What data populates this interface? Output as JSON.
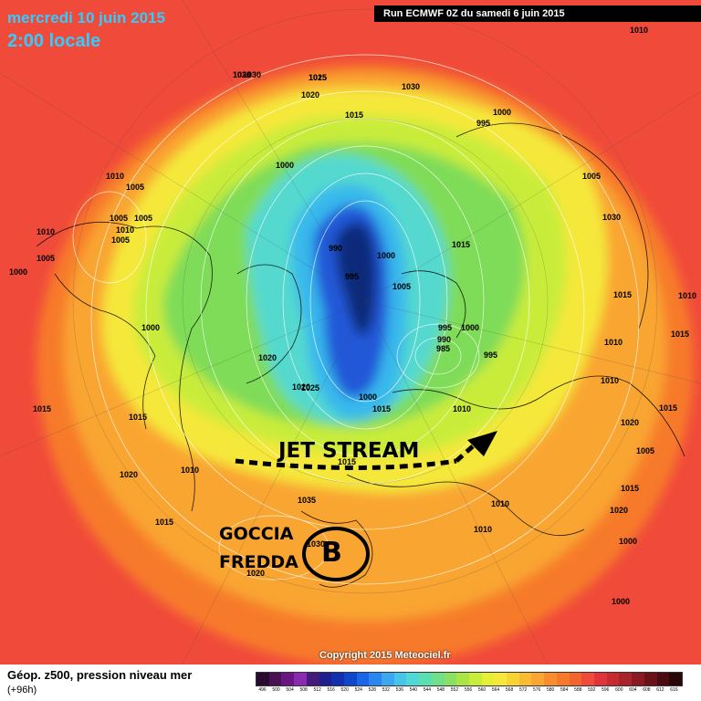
{
  "header": {
    "date": "mercredi 10 juin 2015",
    "time": "2:00 locale",
    "run": "Run ECMWF 0Z du samedi 6 juin 2015"
  },
  "footer": {
    "title": "Géop. z500, pression niveau mer",
    "subtitle": "(+96h)",
    "copyright": "Copyright 2015 Meteociel.fr"
  },
  "annotations": {
    "jet_stream": "JET STREAM",
    "cold_drop_line1": "GOCCIA",
    "cold_drop_line2": "FREDDA",
    "low_letter": "B"
  },
  "colors": {
    "background": "#f04a3a",
    "outer_orange": "#f77a2c",
    "orange": "#f9a531",
    "yellow": "#f5e83a",
    "light_green": "#c9ec3b",
    "green": "#7fdc58",
    "cyan": "#55d9cf",
    "light_blue": "#39b8ec",
    "blue": "#2259d8",
    "deep_blue": "#133aa2",
    "navy": "#0d2a7a"
  },
  "pressure_labels": [
    "1030",
    "1025",
    "1020",
    "1015",
    "1030",
    "1000",
    "995",
    "1010",
    "1000",
    "1005",
    "1005",
    "1010",
    "1010",
    "1005",
    "1010",
    "1005",
    "1000",
    "1005",
    "990",
    "995",
    "1000",
    "1005",
    "1015",
    "1030",
    "1030",
    "995",
    "1000",
    "990",
    "985",
    "995",
    "1010",
    "1010",
    "1015",
    "1015",
    "1020",
    "1015",
    "1020",
    "1005",
    "1000",
    "1025",
    "1020",
    "1000",
    "1015",
    "1020",
    "1035",
    "1030",
    "1020",
    "1015",
    "1010",
    "1010",
    "1020",
    "1005",
    "1000",
    "1015",
    "1000",
    "1015",
    "1010",
    "1010",
    "1015",
    "1010",
    "1015",
    "1020",
    "1015"
  ],
  "scale_colors": [
    "#2a0a30",
    "#4a0f55",
    "#6a1680",
    "#8a2ab0",
    "#451a7a",
    "#201f8f",
    "#122fae",
    "#0f47cc",
    "#1a66e8",
    "#2a86f0",
    "#3aa7ef",
    "#46c4ea",
    "#4fd8d5",
    "#5ae0b0",
    "#6fe08a",
    "#8ae063",
    "#a9e545",
    "#c9ec3b",
    "#e4ef36",
    "#f5e83a",
    "#f7d334",
    "#f9bb31",
    "#f9a531",
    "#f98c2e",
    "#f77a2c",
    "#f4652e",
    "#f04a3a",
    "#e0333a",
    "#c62b32",
    "#a8232a",
    "#8a1a22",
    "#6a121a",
    "#4a0c12",
    "#2a0608"
  ],
  "scale_labels": [
    "496",
    "500",
    "504",
    "508",
    "512",
    "516",
    "520",
    "524",
    "528",
    "532",
    "536",
    "540",
    "544",
    "548",
    "552",
    "556",
    "560",
    "564",
    "568",
    "572",
    "576",
    "580",
    "584",
    "588",
    "592",
    "596",
    "600",
    "604",
    "608",
    "612",
    "616"
  ]
}
